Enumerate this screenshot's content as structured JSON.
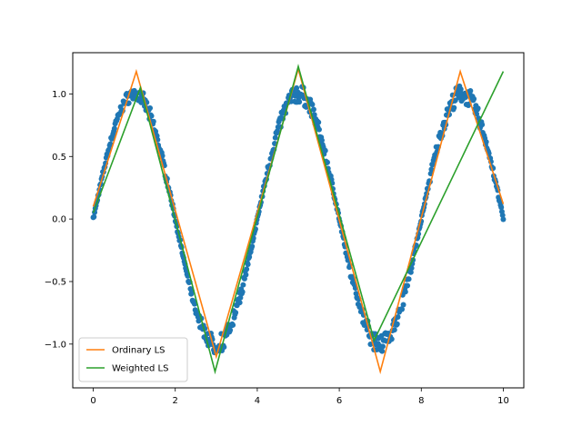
{
  "chart_data": {
    "type": "line",
    "title": "",
    "xlabel": "",
    "ylabel": "",
    "xlim": [
      -0.5,
      10.5
    ],
    "ylim": [
      -1.35,
      1.33
    ],
    "xticks": [
      0,
      2,
      4,
      6,
      8,
      10
    ],
    "yticks": [
      -1.0,
      -0.5,
      0.0,
      0.5,
      1.0
    ],
    "xtick_labels": [
      "0",
      "2",
      "4",
      "6",
      "8",
      "10"
    ],
    "ytick_labels": [
      "−1.0",
      "−0.5",
      "0.0",
      "0.5",
      "1.0"
    ],
    "grid": false,
    "legend_position": "lower-left",
    "scatter": {
      "color": "#1f77b4",
      "description_function": "sin(pi/4 * x) * (1 + small noise), x from 0 to 10"
    },
    "series": [
      {
        "name": "Ordinary LS",
        "color": "#ff7f0e",
        "x": [
          0.0,
          1.05,
          3.0,
          5.0,
          7.0,
          8.95,
          10.0
        ],
        "y": [
          0.1,
          1.18,
          -1.1,
          1.2,
          -1.22,
          1.18,
          0.12
        ]
      },
      {
        "name": "Weighted LS",
        "color": "#2ca02c",
        "x": [
          0.0,
          1.15,
          2.97,
          5.0,
          6.85,
          10.0
        ],
        "y": [
          0.05,
          1.05,
          -1.22,
          1.22,
          -0.97,
          1.18
        ]
      }
    ]
  }
}
